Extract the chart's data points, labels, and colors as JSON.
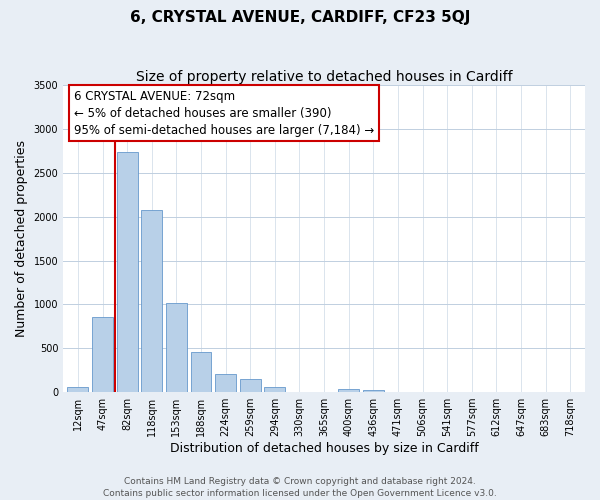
{
  "title": "6, CRYSTAL AVENUE, CARDIFF, CF23 5QJ",
  "subtitle": "Size of property relative to detached houses in Cardiff",
  "xlabel": "Distribution of detached houses by size in Cardiff",
  "ylabel": "Number of detached properties",
  "bar_labels": [
    "12sqm",
    "47sqm",
    "82sqm",
    "118sqm",
    "153sqm",
    "188sqm",
    "224sqm",
    "259sqm",
    "294sqm",
    "330sqm",
    "365sqm",
    "400sqm",
    "436sqm",
    "471sqm",
    "506sqm",
    "541sqm",
    "577sqm",
    "612sqm",
    "647sqm",
    "683sqm",
    "718sqm"
  ],
  "bar_values": [
    60,
    860,
    2740,
    2080,
    1020,
    460,
    210,
    145,
    60,
    0,
    0,
    40,
    25,
    0,
    0,
    0,
    0,
    0,
    0,
    0,
    0
  ],
  "bar_color": "#b8d0e8",
  "bar_edge_color": "#6699cc",
  "marker_color": "#cc0000",
  "annotation_line1": "6 CRYSTAL AVENUE: 72sqm",
  "annotation_line2": "← 5% of detached houses are smaller (390)",
  "annotation_line3": "95% of semi-detached houses are larger (7,184) →",
  "annotation_box_color": "#ffffff",
  "annotation_box_edge": "#cc0000",
  "ylim": [
    0,
    3500
  ],
  "yticks": [
    0,
    500,
    1000,
    1500,
    2000,
    2500,
    3000,
    3500
  ],
  "footer_text": "Contains HM Land Registry data © Crown copyright and database right 2024.\nContains public sector information licensed under the Open Government Licence v3.0.",
  "bg_color": "#e8eef5",
  "plot_bg_color": "#ffffff",
  "grid_color": "#c0cfe0",
  "title_fontsize": 11,
  "subtitle_fontsize": 10,
  "axis_label_fontsize": 9,
  "tick_fontsize": 7,
  "footer_fontsize": 6.5,
  "annotation_fontsize": 8.5
}
